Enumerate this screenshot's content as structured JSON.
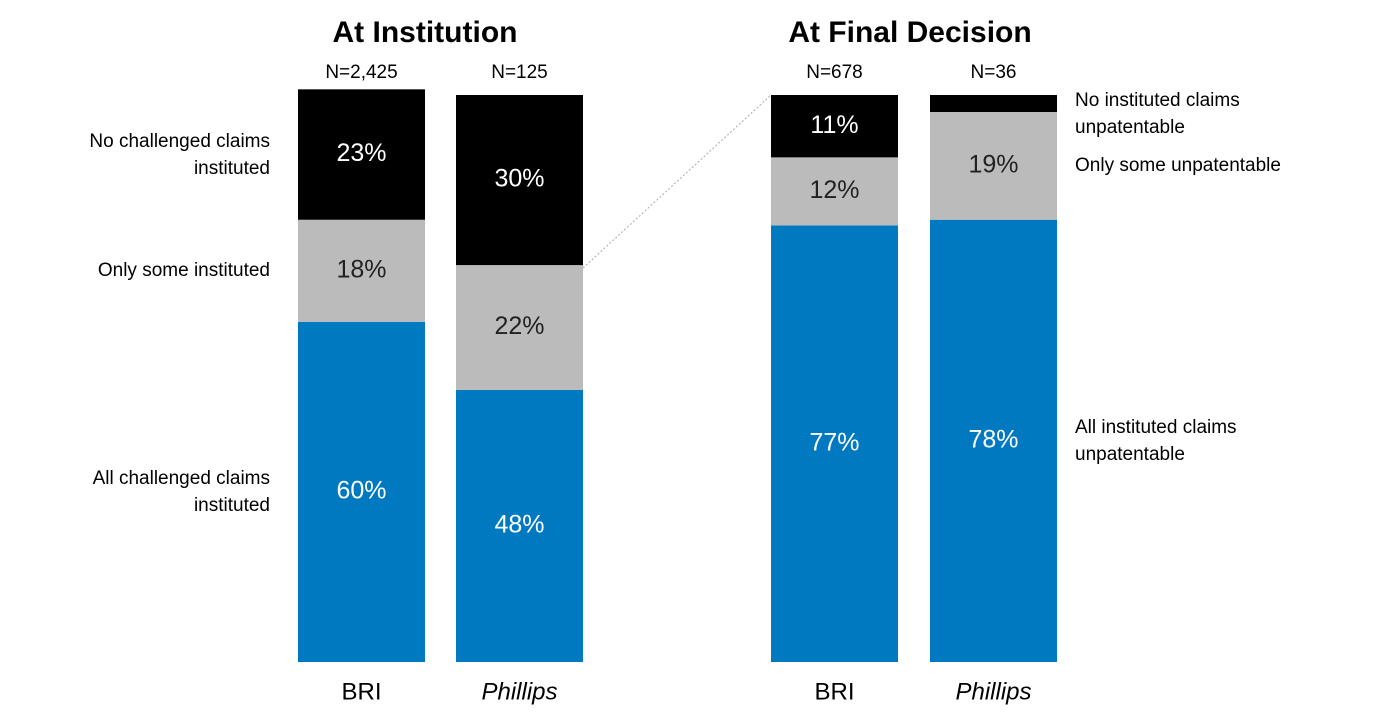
{
  "chart_data": [
    {
      "type": "stacked_bar",
      "title": "At Institution",
      "categories": [
        "BRI",
        "Phillips"
      ],
      "n_labels": [
        "N=2,425",
        "N=125"
      ],
      "ylim": [
        0,
        100
      ],
      "series": [
        {
          "name": "All challenged claims instituted",
          "color": "#0079c1",
          "values": [
            60,
            48
          ],
          "value_labels": [
            "60%",
            "48%"
          ]
        },
        {
          "name": "Only some instituted",
          "color": "#bbbbbb",
          "values": [
            18,
            22
          ],
          "value_labels": [
            "18%",
            "22%"
          ]
        },
        {
          "name": "No challenged claims instituted",
          "color": "#000000",
          "values": [
            23,
            30
          ],
          "value_labels": [
            "23%",
            "30%"
          ]
        }
      ],
      "legend": "left"
    },
    {
      "type": "stacked_bar",
      "title": "At Final Decision",
      "categories": [
        "BRI",
        "Phillips"
      ],
      "n_labels": [
        "N=678",
        "N=36"
      ],
      "ylim": [
        0,
        100
      ],
      "series": [
        {
          "name": "All instituted claims unpatentable",
          "color": "#0079c1",
          "values": [
            77,
            78
          ],
          "value_labels": [
            "77%",
            "78%"
          ]
        },
        {
          "name": "Only some unpatentable",
          "color": "#bbbbbb",
          "values": [
            12,
            19
          ],
          "value_labels": [
            "12%",
            "19%"
          ]
        },
        {
          "name": "No instituted claims unpatentable",
          "color": "#000000",
          "values": [
            11,
            3
          ],
          "value_labels": [
            "11%",
            null
          ]
        }
      ],
      "legend": "right"
    }
  ]
}
